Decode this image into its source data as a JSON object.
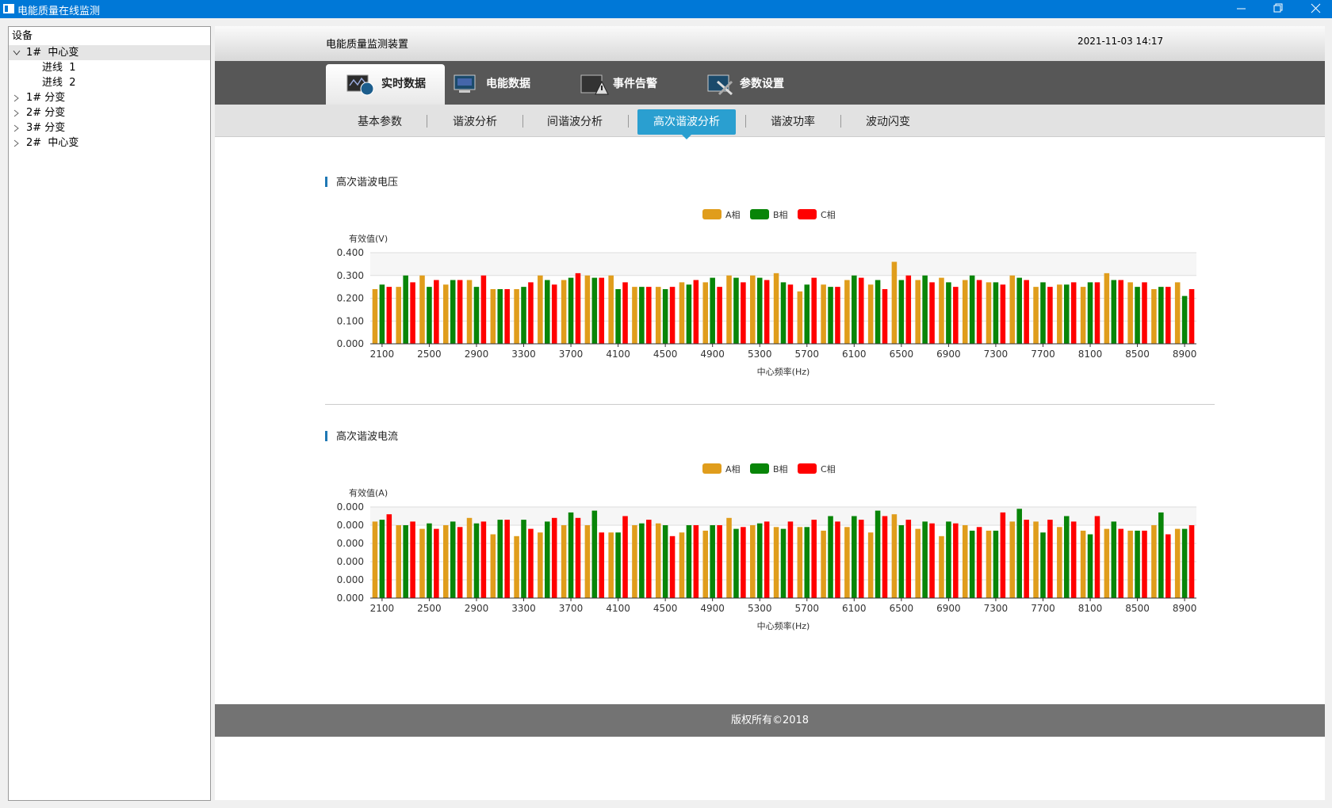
{
  "window": {
    "title": "电能质量在线监测"
  },
  "sidebar": {
    "header": "设备",
    "tree": [
      {
        "label": "1#  中心变",
        "children": [
          "进线  1",
          "进线  2"
        ]
      },
      {
        "label": "1# 分变"
      },
      {
        "label": "2# 分变"
      },
      {
        "label": "3# 分变"
      },
      {
        "label": "2#  中心变"
      }
    ]
  },
  "header": {
    "title": "电能质量监测装置",
    "datetime": "2021-11-03 14:17"
  },
  "main_tabs": [
    "实时数据",
    "电能数据",
    "事件告警",
    "参数设置"
  ],
  "sub_tabs": [
    "基本参数",
    "谐波分析",
    "间谐波分析",
    "高次谐波分析",
    "谐波功率",
    "波动闪变"
  ],
  "chart_data": [
    {
      "type": "bar",
      "title": "高次谐波电压",
      "y_axis_label": "有效值(V)",
      "x_axis_label": "中心频率(Hz)",
      "categories": [
        2100,
        null,
        2500,
        null,
        2900,
        null,
        3300,
        null,
        3700,
        null,
        4100,
        null,
        4500,
        null,
        4900,
        null,
        5300,
        null,
        5700,
        null,
        6100,
        null,
        6500,
        null,
        6900,
        null,
        7300,
        null,
        7700,
        null,
        8100,
        null,
        8500,
        null,
        8900
      ],
      "series": [
        {
          "name": "A相",
          "color": "#e09d1c",
          "values": [
            0.24,
            0.25,
            0.3,
            0.26,
            0.28,
            0.24,
            0.24,
            0.3,
            0.28,
            0.3,
            0.3,
            0.25,
            0.25,
            0.27,
            0.27,
            0.3,
            0.3,
            0.31,
            0.23,
            0.26,
            0.28,
            0.26,
            0.36,
            0.28,
            0.29,
            0.28,
            0.27,
            0.3,
            0.25,
            0.26,
            0.25,
            0.31,
            0.27,
            0.24,
            0.27
          ]
        },
        {
          "name": "B相",
          "color": "#088508",
          "values": [
            0.26,
            0.3,
            0.25,
            0.28,
            0.25,
            0.24,
            0.25,
            0.28,
            0.29,
            0.29,
            0.24,
            0.25,
            0.24,
            0.26,
            0.29,
            0.29,
            0.29,
            0.27,
            0.26,
            0.25,
            0.3,
            0.28,
            0.28,
            0.3,
            0.27,
            0.3,
            0.27,
            0.29,
            0.27,
            0.26,
            0.27,
            0.28,
            0.25,
            0.25,
            0.21
          ]
        },
        {
          "name": "C相",
          "color": "#ff0000",
          "values": [
            0.25,
            0.27,
            0.28,
            0.28,
            0.3,
            0.24,
            0.27,
            0.26,
            0.31,
            0.29,
            0.27,
            0.25,
            0.25,
            0.28,
            0.25,
            0.27,
            0.28,
            0.26,
            0.29,
            0.25,
            0.29,
            0.24,
            0.3,
            0.27,
            0.25,
            0.28,
            0.26,
            0.28,
            0.25,
            0.27,
            0.27,
            0.28,
            0.27,
            0.25,
            0.24
          ]
        }
      ],
      "ylim": [
        0,
        0.4
      ],
      "yticks": [
        {
          "value": 0,
          "label": "0.000"
        },
        {
          "value": 0.1,
          "label": "0.100"
        },
        {
          "value": 0.2,
          "label": "0.200"
        },
        {
          "value": 0.3,
          "label": "0.300"
        },
        {
          "value": 0.4,
          "label": "0.400"
        }
      ],
      "grid": true
    },
    {
      "type": "bar",
      "title": "高次谐波电流",
      "y_axis_label": "有效值(A)",
      "x_axis_label": "中心频率(Hz)",
      "categories": [
        2100,
        null,
        2500,
        null,
        2900,
        null,
        3300,
        null,
        3700,
        null,
        4100,
        null,
        4500,
        null,
        4900,
        null,
        5300,
        null,
        5700,
        null,
        6100,
        null,
        6500,
        null,
        6900,
        null,
        7300,
        null,
        7700,
        null,
        8100,
        null,
        8500,
        null,
        8900
      ],
      "series": [
        {
          "name": "A相",
          "color": "#e09d1c",
          "values": [
            0.00042,
            0.0004,
            0.00038,
            0.0004,
            0.00044,
            0.00035,
            0.00034,
            0.00036,
            0.0004,
            0.0004,
            0.00036,
            0.0004,
            0.00041,
            0.00036,
            0.00037,
            0.00044,
            0.0004,
            0.00039,
            0.00039,
            0.00037,
            0.00039,
            0.00036,
            0.00046,
            0.00038,
            0.00034,
            0.0004,
            0.00037,
            0.00042,
            0.00042,
            0.00039,
            0.00037,
            0.00038,
            0.00037,
            0.0004,
            0.00038
          ]
        },
        {
          "name": "B相",
          "color": "#088508",
          "values": [
            0.00043,
            0.0004,
            0.00041,
            0.00042,
            0.00041,
            0.00043,
            0.00043,
            0.00042,
            0.00047,
            0.00048,
            0.00036,
            0.00041,
            0.0004,
            0.0004,
            0.0004,
            0.00038,
            0.00041,
            0.00038,
            0.00039,
            0.00045,
            0.00045,
            0.00048,
            0.0004,
            0.00042,
            0.00042,
            0.00037,
            0.00037,
            0.00049,
            0.00036,
            0.00045,
            0.00035,
            0.00042,
            0.00037,
            0.00047,
            0.00038
          ]
        },
        {
          "name": "C相",
          "color": "#ff0000",
          "values": [
            0.00046,
            0.00042,
            0.00038,
            0.00039,
            0.00042,
            0.00043,
            0.00038,
            0.00044,
            0.00044,
            0.00036,
            0.00045,
            0.00043,
            0.00034,
            0.0004,
            0.0004,
            0.00039,
            0.00042,
            0.00042,
            0.00043,
            0.00042,
            0.00043,
            0.00045,
            0.00043,
            0.00041,
            0.00041,
            0.00039,
            0.00047,
            0.00043,
            0.00043,
            0.00042,
            0.00045,
            0.00038,
            0.00037,
            0.00035,
            0.0004
          ]
        }
      ],
      "ylim": [
        0,
        0.0005
      ],
      "yticks": [
        {
          "value": 0,
          "label": "0.000"
        },
        {
          "value": 0.0001,
          "label": "0.000"
        },
        {
          "value": 0.0002,
          "label": "0.000"
        },
        {
          "value": 0.0003,
          "label": "0.000"
        },
        {
          "value": 0.0004,
          "label": "0.000"
        },
        {
          "value": 0.0005,
          "label": "0.000"
        }
      ],
      "grid": true
    }
  ],
  "footer": "版权所有©2018"
}
